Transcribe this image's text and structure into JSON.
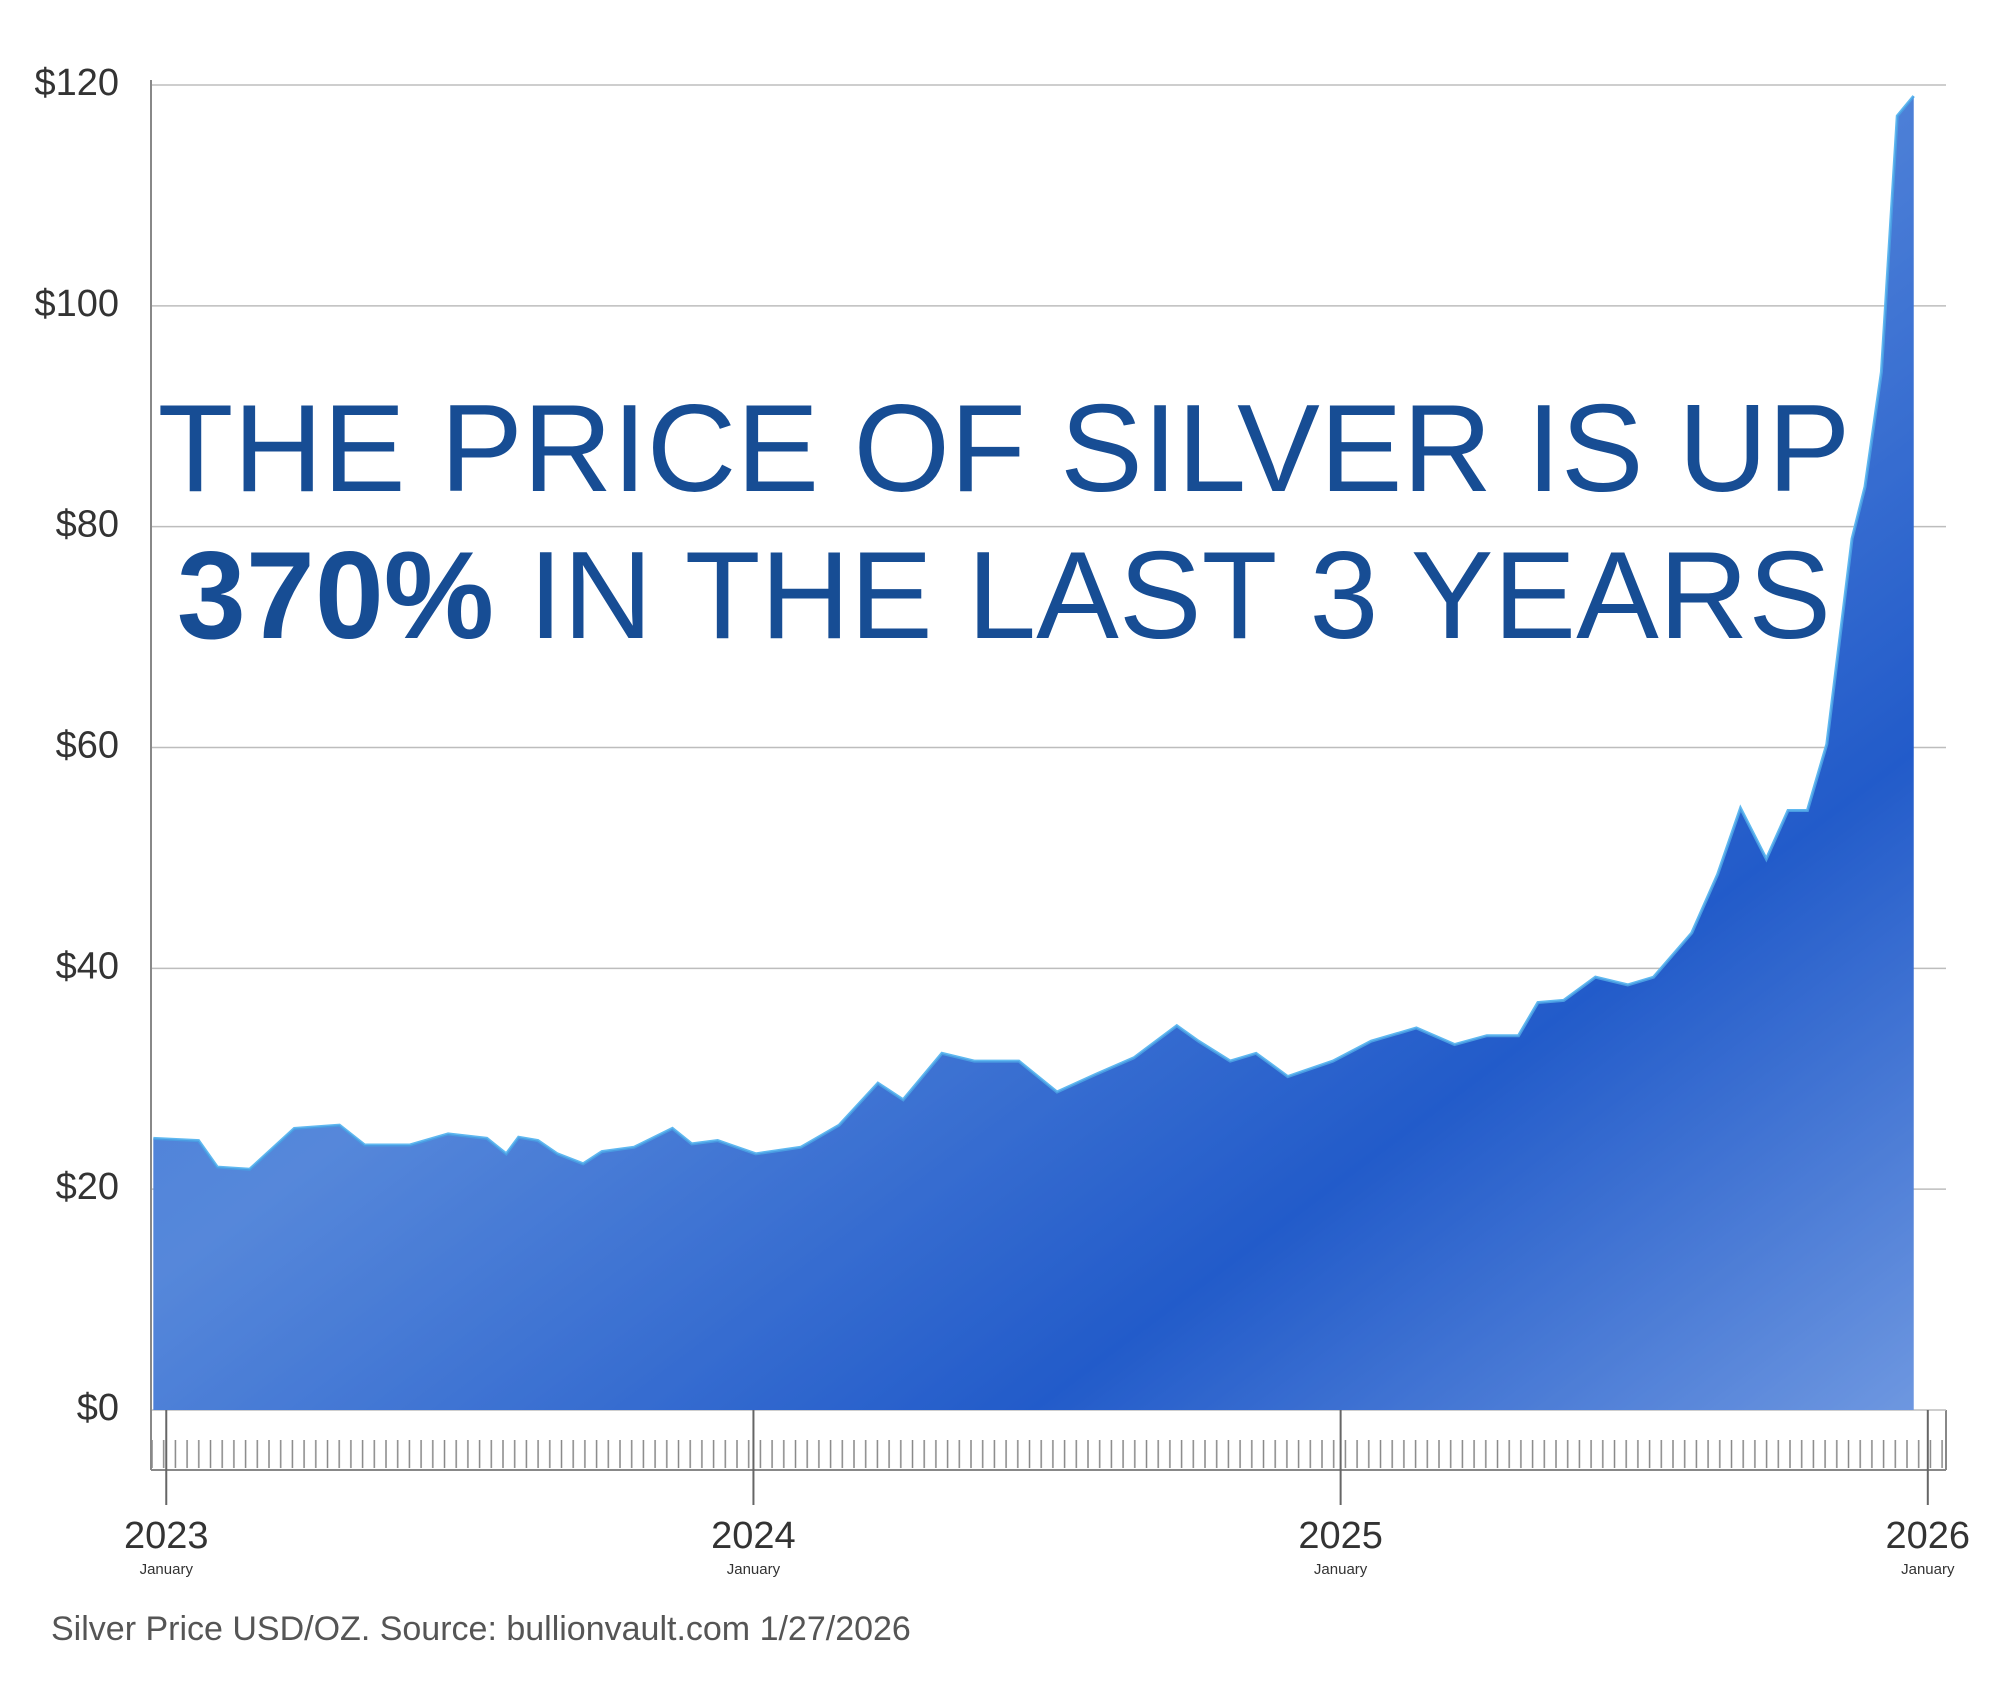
{
  "chart_data": {
    "type": "area",
    "title_line1": "THE PRICE OF SILVER IS UP",
    "title_highlight": "370%",
    "title_rest": "IN THE LAST 3 YEARS",
    "source": "Silver Price USD/OZ. Source: bullionvault.com 1/27/2026",
    "x": [
      2022.978,
      2023.055,
      2023.087,
      2023.142,
      2023.218,
      2023.295,
      2023.338,
      2023.415,
      2023.48,
      2023.546,
      2023.579,
      2023.6,
      2023.633,
      2023.666,
      2023.71,
      2023.742,
      2023.797,
      2023.862,
      2023.895,
      2023.939,
      2024.004,
      2024.081,
      2024.146,
      2024.212,
      2024.255,
      2024.321,
      2024.376,
      2024.452,
      2024.517,
      2024.583,
      2024.648,
      2024.721,
      2024.758,
      2024.812,
      2024.856,
      2024.91,
      2024.987,
      2025.052,
      2025.129,
      2025.194,
      2025.249,
      2025.303,
      2025.336,
      2025.38,
      2025.434,
      2025.489,
      2025.533,
      2025.598,
      2025.642,
      2025.681,
      2025.725,
      2025.762,
      2025.795,
      2025.828,
      2025.871,
      2025.893,
      2025.921,
      2025.948,
      2025.976
    ],
    "values": [
      24.6,
      24.4,
      22,
      21.8,
      25.5,
      25.8,
      24,
      24,
      25,
      24.6,
      23.2,
      24.7,
      24.4,
      23.2,
      22.3,
      23.4,
      23.8,
      25.5,
      24.1,
      24.4,
      23.2,
      23.8,
      25.8,
      29.6,
      28.1,
      32.3,
      31.6,
      31.6,
      28.8,
      30.4,
      31.9,
      34.8,
      33.4,
      31.6,
      32.3,
      30.2,
      31.6,
      33.4,
      34.6,
      33.1,
      33.9,
      33.9,
      36.9,
      37.1,
      39.2,
      38.5,
      39.2,
      43.2,
      48.5,
      54.5,
      49.9,
      54.3,
      54.3,
      60.3,
      78.9,
      83.6,
      94,
      117.2,
      119
    ],
    "color": "#0a47b8",
    "line_color": "#5fb8f0",
    "xlim": [
      2022.974,
      2026.031
    ],
    "xticks": [
      2023,
      2024,
      2025,
      2026
    ],
    "xtick_sublabels": [
      "January",
      "January",
      "January",
      "January"
    ],
    "ylim": [
      0,
      120
    ],
    "yticks": [
      {
        "value": 0,
        "label": "$0"
      },
      {
        "value": 20,
        "label": "$20"
      },
      {
        "value": 40,
        "label": "$40"
      },
      {
        "value": 60,
        "label": "$60"
      },
      {
        "value": 80,
        "label": "$80"
      },
      {
        "value": 100,
        "label": "$100"
      },
      {
        "value": 120,
        "label": "$120"
      }
    ],
    "grid": true
  }
}
